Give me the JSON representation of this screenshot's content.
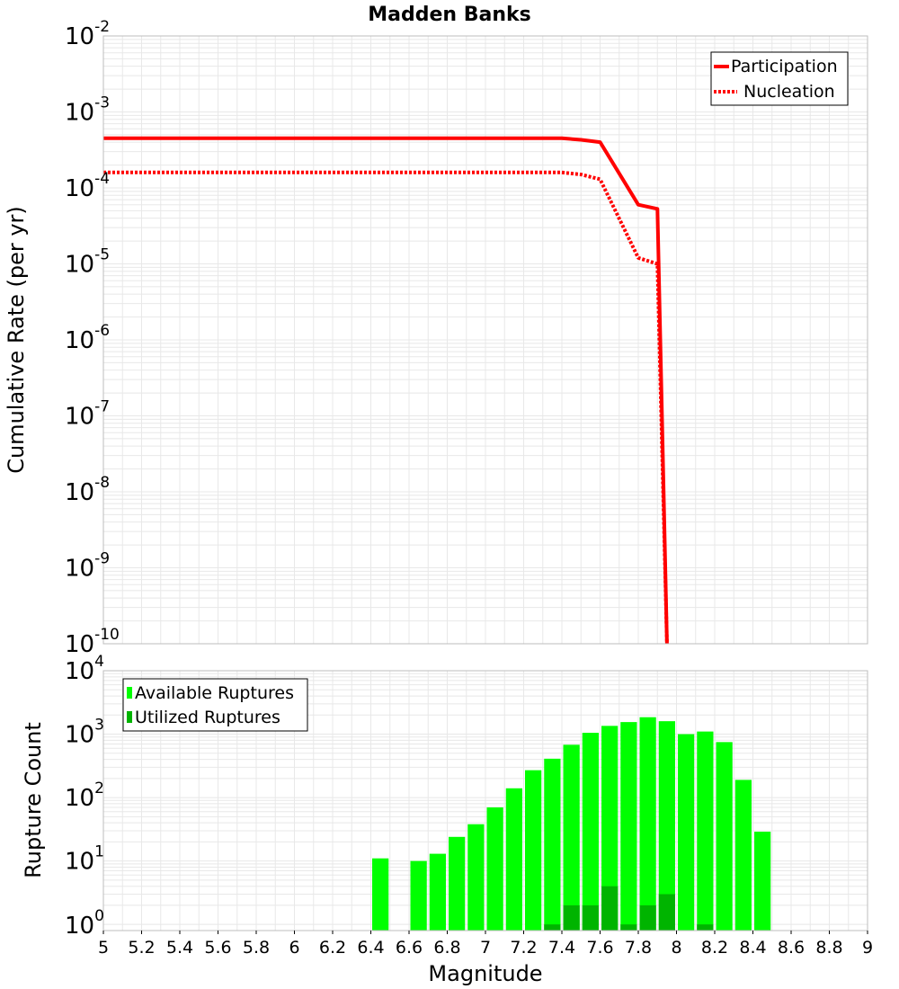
{
  "chart_data": [
    {
      "type": "line",
      "title": "Madden Banks",
      "xlabel": "",
      "ylabel": "Cumulative Rate (per yr)",
      "xlim": [
        5,
        9
      ],
      "ylim": [
        1e-10,
        0.01
      ],
      "yscale": "log",
      "grid": true,
      "legend_position": "top-right",
      "yticks": [
        {
          "base": "10",
          "exp": "-2"
        },
        {
          "base": "10",
          "exp": "-3"
        },
        {
          "base": "10",
          "exp": "-4"
        },
        {
          "base": "10",
          "exp": "-5"
        },
        {
          "base": "10",
          "exp": "-6"
        },
        {
          "base": "10",
          "exp": "-7"
        },
        {
          "base": "10",
          "exp": "-8"
        },
        {
          "base": "10",
          "exp": "-9"
        },
        {
          "base": "10",
          "exp": "-10"
        }
      ],
      "series": [
        {
          "name": "Participation",
          "style": "solid",
          "color": "#ff0000",
          "x": [
            5.0,
            7.0,
            7.4,
            7.5,
            7.6,
            7.8,
            7.9,
            7.95
          ],
          "y": [
            0.00045,
            0.00045,
            0.00045,
            0.00043,
            0.0004,
            6e-05,
            5.3e-05,
            1e-10
          ]
        },
        {
          "name": "Nucleation",
          "style": "dotted",
          "color": "#ff0000",
          "x": [
            5.0,
            7.0,
            7.4,
            7.5,
            7.6,
            7.8,
            7.9,
            7.95
          ],
          "y": [
            0.00016,
            0.00016,
            0.00016,
            0.00015,
            0.00013,
            1.2e-05,
            1e-05,
            1e-10
          ]
        }
      ]
    },
    {
      "type": "bar",
      "title": "",
      "xlabel": "Magnitude",
      "ylabel": "Rupture Count",
      "xlim": [
        5,
        9
      ],
      "ylim": [
        0.8,
        10000
      ],
      "yscale": "log",
      "grid": true,
      "legend_position": "top-left",
      "xticks": [
        "5",
        "5.2",
        "5.4",
        "5.6",
        "5.8",
        "6",
        "6.2",
        "6.4",
        "6.6",
        "6.8",
        "7",
        "7.2",
        "7.4",
        "7.6",
        "7.8",
        "8",
        "8.2",
        "8.4",
        "8.6",
        "8.8",
        "9"
      ],
      "yticks": [
        {
          "base": "10",
          "exp": "4"
        },
        {
          "base": "10",
          "exp": "3"
        },
        {
          "base": "10",
          "exp": "2"
        },
        {
          "base": "10",
          "exp": "1"
        },
        {
          "base": "10",
          "exp": "0"
        }
      ],
      "bin_width": 0.1,
      "series": [
        {
          "name": "Available Ruptures",
          "color": "#00ff00",
          "x": [
            6.45,
            6.65,
            6.75,
            6.85,
            6.95,
            7.05,
            7.15,
            7.25,
            7.35,
            7.45,
            7.55,
            7.65,
            7.75,
            7.85,
            7.95,
            8.05,
            8.15,
            8.25,
            8.35,
            8.45
          ],
          "values": [
            11,
            10,
            13,
            24,
            38,
            70,
            140,
            270,
            410,
            680,
            1050,
            1350,
            1550,
            1850,
            1600,
            1000,
            1100,
            750,
            190,
            29
          ]
        },
        {
          "name": "Utilized Ruptures",
          "color": "#00b400",
          "x": [
            7.35,
            7.45,
            7.55,
            7.65,
            7.75,
            7.85,
            7.95,
            8.15
          ],
          "values": [
            1,
            2,
            2,
            4,
            1,
            2,
            3,
            1
          ]
        }
      ]
    }
  ]
}
